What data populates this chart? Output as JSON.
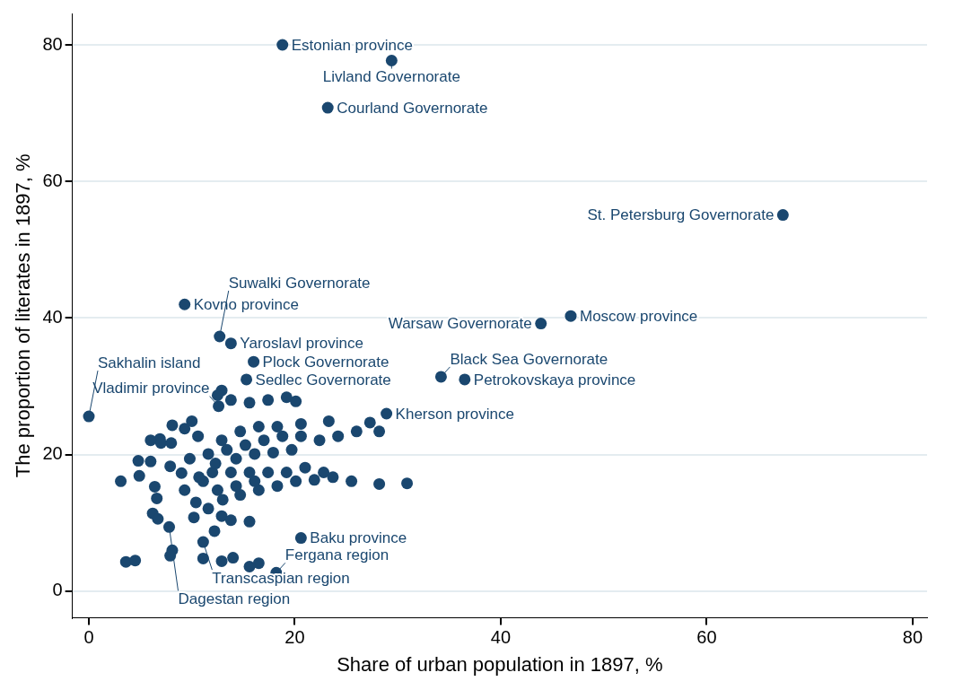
{
  "chart_data": {
    "type": "scatter",
    "xlabel": "Share of urban population in 1897, %",
    "ylabel": "The proportion of literates in 1897, %",
    "xlim": [
      -1.6,
      81.4
    ],
    "ylim": [
      -3.9,
      84.6
    ],
    "xticks": [
      0,
      20,
      40,
      60,
      80
    ],
    "yticks": [
      0,
      20,
      40,
      60,
      80
    ],
    "grid": "y",
    "marker": "circle",
    "legend": false,
    "series": [
      {
        "color": "#1a476f",
        "x": [
          18.8,
          29.4,
          23.2,
          67.4,
          9.3,
          46.8,
          43.9,
          12.7,
          13.8,
          16.0,
          34.2,
          36.5,
          15.3,
          12.6,
          0,
          28.9,
          7.8,
          20.6,
          11.1,
          18.2,
          8.1,
          9.3,
          6.9,
          6.0,
          7.0,
          8.0,
          4.8,
          6.0,
          3.1,
          4.9,
          6.4,
          7.9,
          6.6,
          6.2,
          6.7,
          8.1,
          3.6,
          4.5,
          7.9,
          14.0,
          16.5,
          9.0,
          9.3,
          10.4,
          11.6,
          12.9,
          13.8,
          15.6,
          13.0,
          14.7,
          16.5,
          18.3,
          20.1,
          21.9,
          23.7,
          25.5,
          28.2,
          30.9,
          11.1,
          12.0,
          13.8,
          15.6,
          17.4,
          19.2,
          21.0,
          22.8,
          9.8,
          11.6,
          13.4,
          15.2,
          17.0,
          18.8,
          20.6,
          22.4,
          24.2,
          26.0,
          28.2,
          12.9,
          14.7,
          16.5,
          18.3,
          20.6,
          23.3,
          27.3,
          12.9,
          12.5,
          13.8,
          15.6,
          17.4,
          19.2,
          20.1,
          10.0,
          10.6,
          12.3,
          14.3,
          16.1,
          17.9,
          19.7,
          10.7,
          12.5,
          14.3,
          16.1,
          10.2,
          12.2,
          11.1,
          12.9,
          15.6
        ],
        "values": [
          80.0,
          77.7,
          70.8,
          55.1,
          42.0,
          40.3,
          39.2,
          37.3,
          36.3,
          33.6,
          31.4,
          31.0,
          31.0,
          27.1,
          25.6,
          26.0,
          9.4,
          7.8,
          7.2,
          2.7,
          24.3,
          23.8,
          22.3,
          22.1,
          21.7,
          21.7,
          19.1,
          19.0,
          16.1,
          16.9,
          15.3,
          18.3,
          13.6,
          11.4,
          10.6,
          6.0,
          4.3,
          4.5,
          5.2,
          4.9,
          4.1,
          17.3,
          14.8,
          13.0,
          12.1,
          11.0,
          10.4,
          10.2,
          13.4,
          14.1,
          14.8,
          15.4,
          16.1,
          16.3,
          16.7,
          16.1,
          15.7,
          15.8,
          16.1,
          17.4,
          17.4,
          17.4,
          17.4,
          17.4,
          18.1,
          17.4,
          19.4,
          20.1,
          20.7,
          21.4,
          22.1,
          22.7,
          22.7,
          22.1,
          22.7,
          23.4,
          23.4,
          22.1,
          23.4,
          24.1,
          24.1,
          24.5,
          24.9,
          24.7,
          29.4,
          28.7,
          28.0,
          27.6,
          28.0,
          28.4,
          27.8,
          24.9,
          22.7,
          18.7,
          19.4,
          20.1,
          20.3,
          20.7,
          16.7,
          14.8,
          15.4,
          16.1,
          10.8,
          8.8,
          4.8,
          4.4,
          3.6
        ]
      }
    ],
    "annotations": [
      {
        "text": "Estonian province",
        "x": 18.8,
        "y": 80.0
      },
      {
        "text": "Livland Governorate",
        "x": 29.4,
        "y": 77.7
      },
      {
        "text": "Courland Governorate",
        "x": 23.2,
        "y": 70.8
      },
      {
        "text": "St. Petersburg Governorate",
        "x": 67.4,
        "y": 55.1
      },
      {
        "text": "Kovno province",
        "x": 9.3,
        "y": 42.0
      },
      {
        "text": "Moscow province",
        "x": 46.8,
        "y": 40.3
      },
      {
        "text": "Warsaw Governorate",
        "x": 43.9,
        "y": 39.2
      },
      {
        "text": "Suwalki Governorate",
        "x": 12.7,
        "y": 37.3
      },
      {
        "text": "Yaroslavl province",
        "x": 13.8,
        "y": 36.3
      },
      {
        "text": "Plock Governorate",
        "x": 16.0,
        "y": 33.6
      },
      {
        "text": "Black Sea Governorate",
        "x": 34.2,
        "y": 31.4
      },
      {
        "text": "Petrokovskaya province",
        "x": 36.5,
        "y": 31.0
      },
      {
        "text": "Sedlec Governorate",
        "x": 15.3,
        "y": 31.0
      },
      {
        "text": "Vladimir province",
        "x": 12.6,
        "y": 27.1
      },
      {
        "text": "Sakhalin island",
        "x": 0,
        "y": 25.6
      },
      {
        "text": "Kherson province",
        "x": 28.9,
        "y": 26.0
      },
      {
        "text": "Dagestan region",
        "x": 7.8,
        "y": 9.4
      },
      {
        "text": "Baku province",
        "x": 20.6,
        "y": 7.8
      },
      {
        "text": "Transcaspian region",
        "x": 11.1,
        "y": 7.2
      },
      {
        "text": "Fergana region",
        "x": 18.2,
        "y": 2.7
      }
    ]
  }
}
